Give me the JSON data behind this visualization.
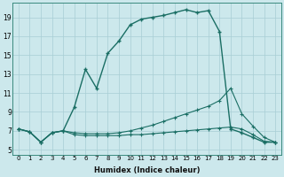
{
  "xlabel": "Humidex (Indice chaleur)",
  "bg_color": "#cce8ec",
  "line_color": "#1a6e64",
  "xlim": [
    -0.5,
    23.5
  ],
  "ylim": [
    4.5,
    20.5
  ],
  "xticks": [
    0,
    1,
    2,
    3,
    4,
    5,
    6,
    7,
    8,
    9,
    10,
    11,
    12,
    13,
    14,
    15,
    16,
    17,
    18,
    19,
    20,
    21,
    22,
    23
  ],
  "yticks": [
    5,
    7,
    9,
    11,
    13,
    15,
    17,
    19
  ],
  "line_main_x": [
    0,
    1,
    2,
    3,
    4,
    5,
    6,
    7,
    8,
    9,
    10,
    11,
    12,
    13,
    14,
    15,
    16,
    17,
    18,
    19,
    20,
    21,
    22,
    23
  ],
  "line_main_y": [
    7.2,
    6.9,
    5.8,
    6.8,
    7.0,
    9.5,
    13.5,
    11.5,
    15.2,
    16.5,
    18.2,
    18.8,
    19.0,
    19.2,
    19.5,
    19.8,
    19.5,
    19.7,
    17.5,
    7.2,
    6.8,
    6.3,
    5.8,
    5.8
  ],
  "line_mid_x": [
    0,
    1,
    2,
    3,
    4,
    5,
    6,
    7,
    8,
    9,
    10,
    11,
    12,
    13,
    14,
    15,
    16,
    17,
    18,
    19,
    20,
    21,
    22,
    23
  ],
  "line_mid_y": [
    7.2,
    6.9,
    5.8,
    6.8,
    7.0,
    6.8,
    6.7,
    6.7,
    6.7,
    6.8,
    7.0,
    7.3,
    7.6,
    8.0,
    8.4,
    8.8,
    9.2,
    9.6,
    10.2,
    11.5,
    8.8,
    7.5,
    6.3,
    5.8
  ],
  "line_bot_x": [
    0,
    1,
    2,
    3,
    4,
    5,
    6,
    7,
    8,
    9,
    10,
    11,
    12,
    13,
    14,
    15,
    16,
    17,
    18,
    19,
    20,
    21,
    22,
    23
  ],
  "line_bot_y": [
    7.2,
    6.9,
    5.8,
    6.8,
    7.0,
    6.6,
    6.5,
    6.5,
    6.5,
    6.5,
    6.6,
    6.6,
    6.7,
    6.8,
    6.9,
    7.0,
    7.1,
    7.2,
    7.3,
    7.4,
    7.2,
    6.6,
    5.9,
    5.8
  ]
}
